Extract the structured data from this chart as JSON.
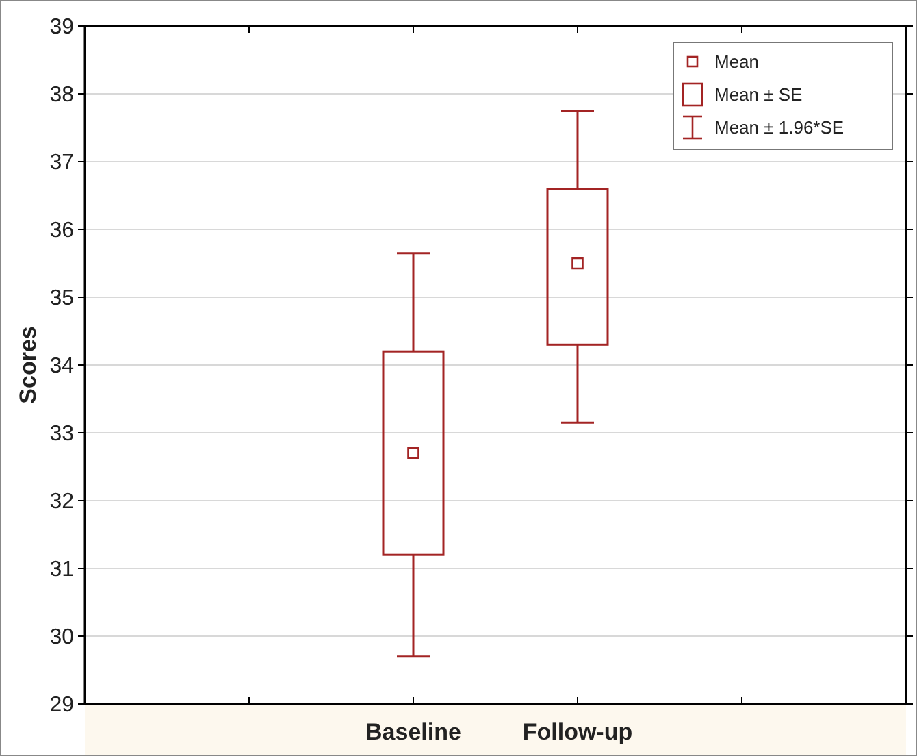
{
  "chart_data": {
    "type": "box",
    "ylabel": "Scores",
    "categories": [
      null,
      "Baseline",
      "Follow-up",
      null
    ],
    "boxes": [
      null,
      {
        "low": 29.7,
        "q1": 31.2,
        "q3": 34.2,
        "high": 35.65,
        "mean": 32.7
      },
      {
        "low": 33.15,
        "q1": 34.3,
        "q3": 36.6,
        "high": 37.75,
        "mean": 35.5
      },
      null
    ],
    "color": "#a32424",
    "ylim": [
      29,
      39
    ],
    "yticks": [
      29,
      30,
      31,
      32,
      33,
      34,
      35,
      36,
      37,
      38,
      39
    ],
    "grid": "y",
    "annotations": [
      "Mean",
      "Mean ± SE",
      "Mean ± 1.96*SE"
    ]
  }
}
